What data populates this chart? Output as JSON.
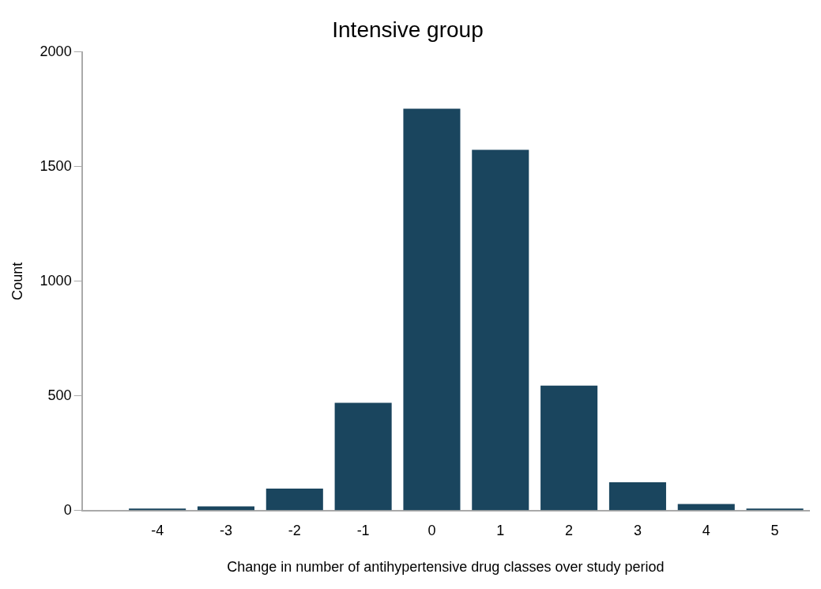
{
  "chart_data": {
    "type": "bar",
    "title": "Intensive group",
    "xlabel": "Change in number of antihypertensive drug classes over study period",
    "ylabel": "Count",
    "x": [
      -4,
      -3,
      -2,
      -1,
      0,
      1,
      2,
      3,
      4,
      5
    ],
    "values": [
      9,
      18,
      96,
      470,
      1752,
      1573,
      545,
      123,
      29,
      9
    ],
    "color": "#1a455e",
    "xlim": [
      -5.1,
      5.5
    ],
    "xticks": [
      -4,
      -3,
      -2,
      -1,
      0,
      1,
      2,
      3,
      4,
      5
    ],
    "ylim": [
      0,
      2000
    ],
    "yticks": [
      0,
      500,
      1000,
      1500,
      2000
    ],
    "grid": false,
    "legend": false
  }
}
